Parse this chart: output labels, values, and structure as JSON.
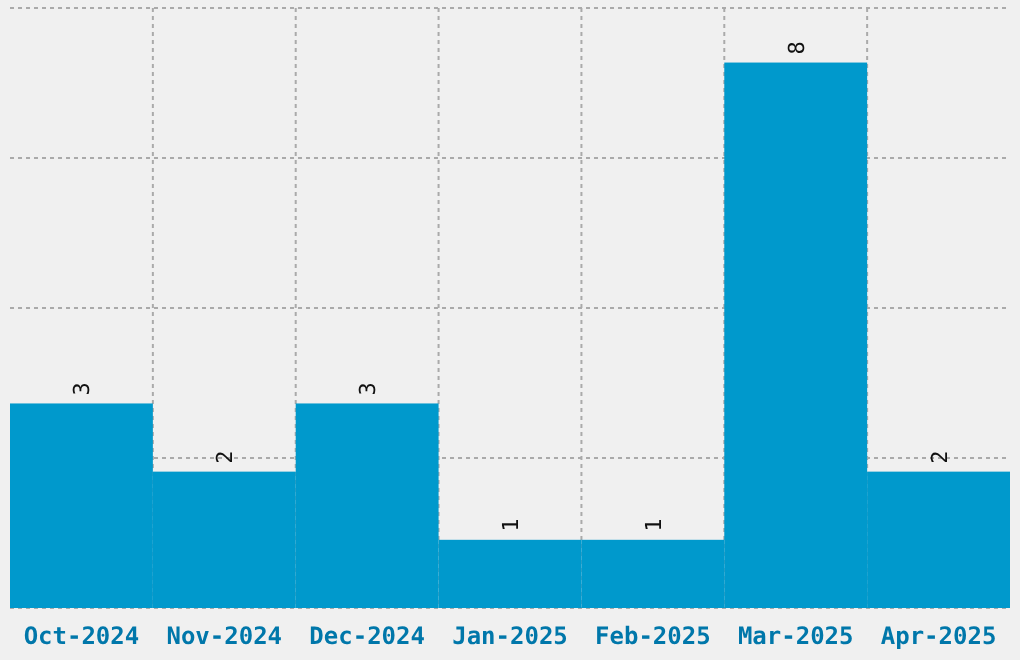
{
  "chart_data": {
    "type": "bar",
    "categories": [
      "Oct-2024",
      "Nov-2024",
      "Dec-2024",
      "Jan-2025",
      "Feb-2025",
      "Mar-2025",
      "Apr-2025"
    ],
    "values": [
      3,
      2,
      3,
      1,
      1,
      8,
      2
    ],
    "color": "#0099cc",
    "data_labels": true,
    "ylim": [
      0,
      8.8
    ],
    "yticks": [
      {
        "value": 0,
        "label": null
      },
      {
        "value": 2.2,
        "label": null
      },
      {
        "value": 4.4,
        "label": null
      },
      {
        "value": 6.6,
        "label": null
      },
      {
        "value": 8.8,
        "label": null
      }
    ],
    "tick_labels": "x",
    "grid": true
  }
}
